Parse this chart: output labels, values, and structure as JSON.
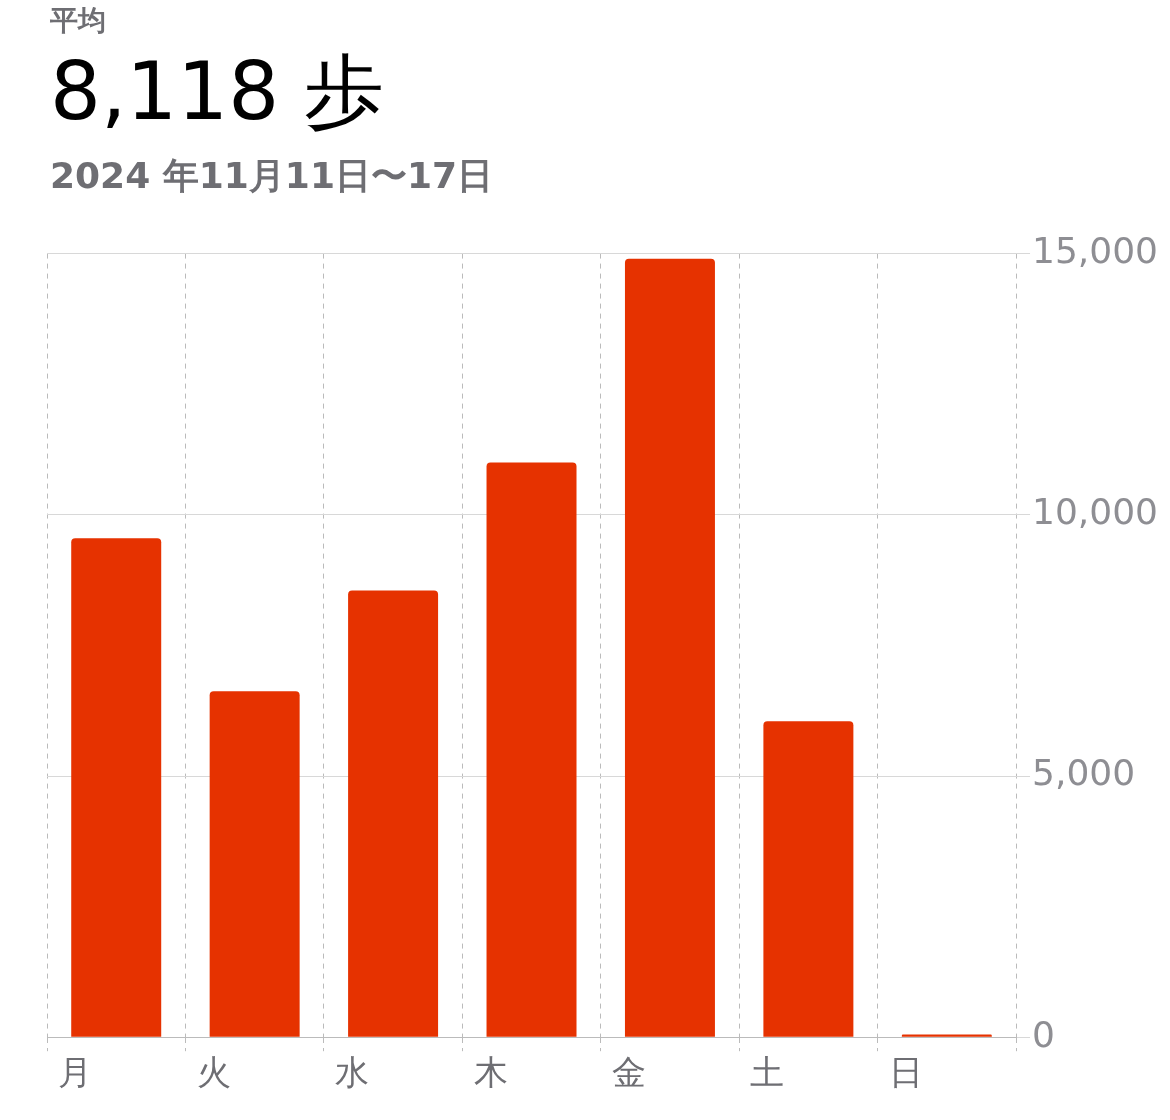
{
  "chart_data": {
    "type": "bar",
    "title": "平均",
    "subtitle": "8,118 歩",
    "annotations": [
      "2024 年11月11日〜17日"
    ],
    "categories": [
      "月",
      "火",
      "水",
      "木",
      "金",
      "土",
      "日"
    ],
    "values": [
      9550,
      6620,
      8550,
      11000,
      14900,
      6050,
      50
    ],
    "color": "#e63200",
    "ylim": [
      0,
      15000
    ],
    "yticks": [
      0,
      {
        "value": 5000,
        "label": "5,000"
      },
      {
        "value": 10000,
        "label": "10,000"
      },
      {
        "value": 15000,
        "label": "15,000"
      }
    ],
    "grid": true,
    "legend": false
  }
}
